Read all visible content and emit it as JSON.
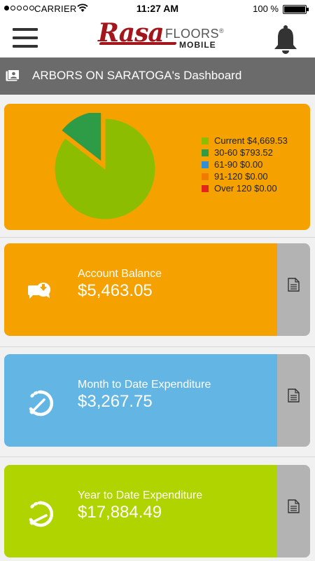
{
  "status_bar": {
    "carrier": "CARRIER",
    "time": "11:27 AM",
    "battery": "100 %"
  },
  "header": {
    "logo_script": "Rasa",
    "logo_floors": "FLOORS",
    "logo_registered": "®",
    "logo_mobile": "MOBILE"
  },
  "title_bar": {
    "title": "ARBORS ON SARATOGA's Dashboard"
  },
  "aging_chart": {
    "legend": [
      {
        "label": "Current $4,669.53",
        "color": "#8cbd00"
      },
      {
        "label": "30-60 $793.52",
        "color": "#2e9c47"
      },
      {
        "label": "61-90 $0.00",
        "color": "#2f8fd8"
      },
      {
        "label": "91-120 $0.00",
        "color": "#f07b00"
      },
      {
        "label": "Over 120 $0.00",
        "color": "#e1261c"
      }
    ]
  },
  "chart_data": {
    "type": "pie",
    "categories": [
      "Current",
      "30-60",
      "61-90",
      "91-120",
      "Over 120"
    ],
    "values": [
      4669.53,
      793.52,
      0,
      0,
      0
    ],
    "colors": [
      "#8cbd00",
      "#2e9c47",
      "#2f8fd8",
      "#f07b00",
      "#e1261c"
    ],
    "legend_position": "right"
  },
  "cards": {
    "account_balance": {
      "label": "Account Balance",
      "value": "$5,463.05",
      "color": "#f5a200"
    },
    "month_to_date": {
      "label": "Month to Date Expenditure",
      "value": "$3,267.75",
      "color": "#63b6e4"
    },
    "year_to_date": {
      "label": "Year to Date Expenditure",
      "value": "$17,884.49",
      "color": "#b0d400"
    }
  }
}
